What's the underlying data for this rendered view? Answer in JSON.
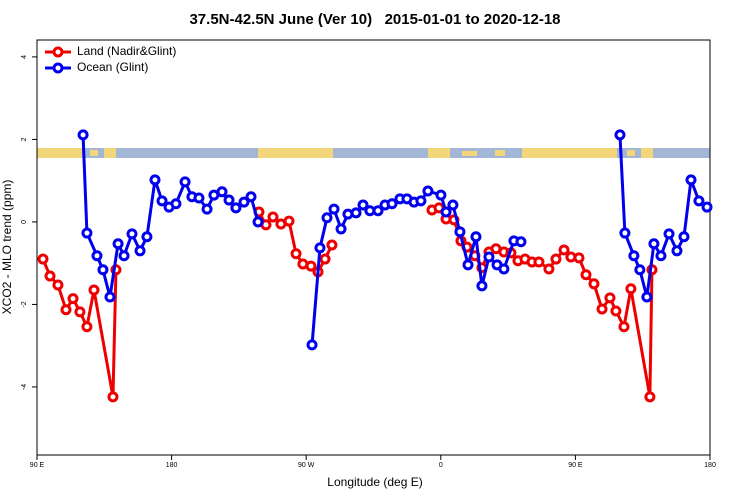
{
  "chart_data": {
    "type": "line",
    "title": "37.5N-42.5N June (Ver 10)   2015-01-01 to 2020-12-18",
    "xlabel": "Longitude (deg E)",
    "ylabel": "XCO2 - MLO trend (ppm)",
    "xlim": [
      90,
      540
    ],
    "ylim": [
      -5.65,
      4.41
    ],
    "xticks": [
      {
        "value": 90,
        "label": "90 E"
      },
      180,
      {
        "value": 270,
        "label": "90 W"
      },
      {
        "value": 360,
        "label": "0"
      },
      {
        "value": 450,
        "label": "90 E"
      },
      {
        "value": 540,
        "label": "180"
      }
    ],
    "yticks": [
      -4,
      -2,
      0,
      2,
      4
    ],
    "legend": "top-left",
    "series": [
      {
        "name": "Land (Nadir&Glint)",
        "color": "#ee0000",
        "x": [
          94.0,
          98.7,
          104.0,
          109.4,
          114.1,
          118.7,
          123.4,
          128.1,
          140.8,
          142.8,
          null,
          238.4,
          243.1,
          247.8,
          253.1,
          258.5,
          263.2,
          267.8,
          273.2,
          277.9,
          282.6,
          287.2,
          null,
          354.1,
          358.8,
          363.5,
          368.8,
          373.5,
          377.5,
          382.8,
          387.5,
          392.2,
          396.9,
          402.2,
          406.9,
          411.6,
          416.3,
          421.0,
          425.6,
          432.3,
          437.0,
          442.4,
          447.0,
          452.4,
          457.1,
          462.4,
          467.8,
          473.1,
          477.1,
          482.5,
          487.1,
          499.8,
          501.2
        ],
        "values": [
          -0.9,
          -1.31,
          -1.53,
          -2.13,
          -1.86,
          -2.18,
          -2.54,
          -1.65,
          -4.24,
          -1.16,
          null,
          0.24,
          -0.07,
          0.12,
          -0.05,
          0.02,
          -0.77,
          -1.02,
          -1.07,
          -1.21,
          -0.9,
          -0.56,
          null,
          0.29,
          0.34,
          0.07,
          0.05,
          -0.46,
          -0.61,
          -0.82,
          -1.11,
          -0.73,
          -0.65,
          -0.73,
          -0.75,
          -0.94,
          -0.9,
          -0.97,
          -0.97,
          -1.14,
          -0.9,
          -0.68,
          -0.85,
          -0.87,
          -1.28,
          -1.5,
          -2.11,
          -1.84,
          -2.16,
          -2.54,
          -1.62,
          -4.24,
          -1.16
        ]
      },
      {
        "name": "Ocean (Glint)",
        "color": "#0000ee",
        "x": [
          120.8,
          123.4,
          130.1,
          134.1,
          138.8,
          144.2,
          148.2,
          153.5,
          158.9,
          163.5,
          168.9,
          173.6,
          178.3,
          182.9,
          189.0,
          193.6,
          198.3,
          203.7,
          208.3,
          213.7,
          218.4,
          223.0,
          228.4,
          233.1,
          237.8,
          null,
          273.9,
          279.2,
          283.9,
          288.6,
          293.3,
          297.9,
          303.3,
          308.0,
          312.6,
          318.0,
          322.7,
          327.4,
          332.7,
          337.4,
          342.1,
          346.7,
          351.4,
          360.1,
          363.5,
          368.1,
          372.8,
          378.2,
          383.5,
          387.5,
          392.2,
          397.6,
          402.2,
          408.9,
          413.6,
          null,
          479.8,
          483.1,
          489.1,
          493.1,
          497.8,
          502.5,
          507.2,
          512.6,
          517.9,
          522.6,
          527.3,
          532.6,
          538.0
        ],
        "values": [
          2.11,
          -0.27,
          -0.82,
          -1.16,
          -1.82,
          -0.53,
          -0.82,
          -0.29,
          -0.7,
          -0.36,
          1.02,
          0.51,
          0.36,
          0.44,
          0.97,
          0.61,
          0.58,
          0.31,
          0.65,
          0.73,
          0.53,
          0.34,
          0.48,
          0.61,
          0.0,
          null,
          -2.98,
          -0.63,
          0.1,
          0.31,
          -0.17,
          0.19,
          0.22,
          0.41,
          0.27,
          0.27,
          0.41,
          0.44,
          0.56,
          0.56,
          0.48,
          0.51,
          0.75,
          0.65,
          0.24,
          0.41,
          -0.24,
          -1.04,
          -0.36,
          -1.55,
          -0.85,
          -1.04,
          -1.14,
          -0.46,
          -0.48,
          null,
          2.11,
          -0.27,
          -0.82,
          -1.16,
          -1.82,
          -0.53,
          -0.82,
          -0.29,
          -0.7,
          -0.36,
          1.02,
          0.51,
          0.36
        ]
      }
    ]
  }
}
